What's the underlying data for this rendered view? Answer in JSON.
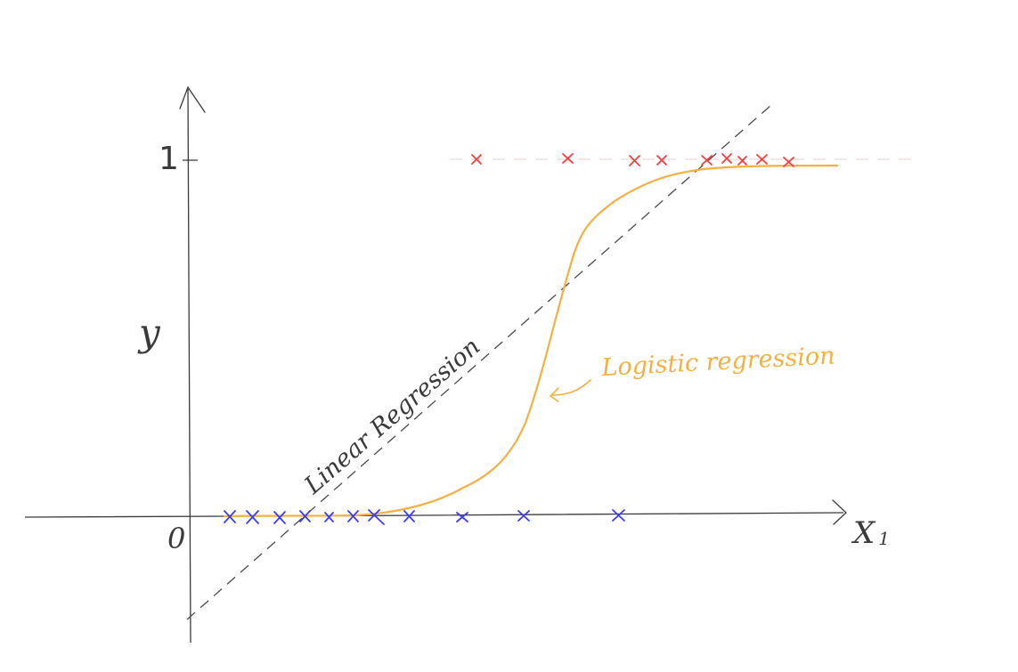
{
  "labels": {
    "y_tick_one": "1",
    "origin": "0",
    "y_axis": "y",
    "x_axis_letter": "X",
    "x_axis_subscript": "1",
    "linear_regression": "Linear Regression",
    "logistic_regression": "Logistic regression"
  },
  "colors": {
    "ink": "#3a3a3a",
    "dashed_line": "#4a4a4a",
    "logistic_curve": "#f5b041",
    "positive_marker": "#ff3b3b",
    "negative_marker": "#3b3bff",
    "guide_line": "#f2dede"
  }
}
